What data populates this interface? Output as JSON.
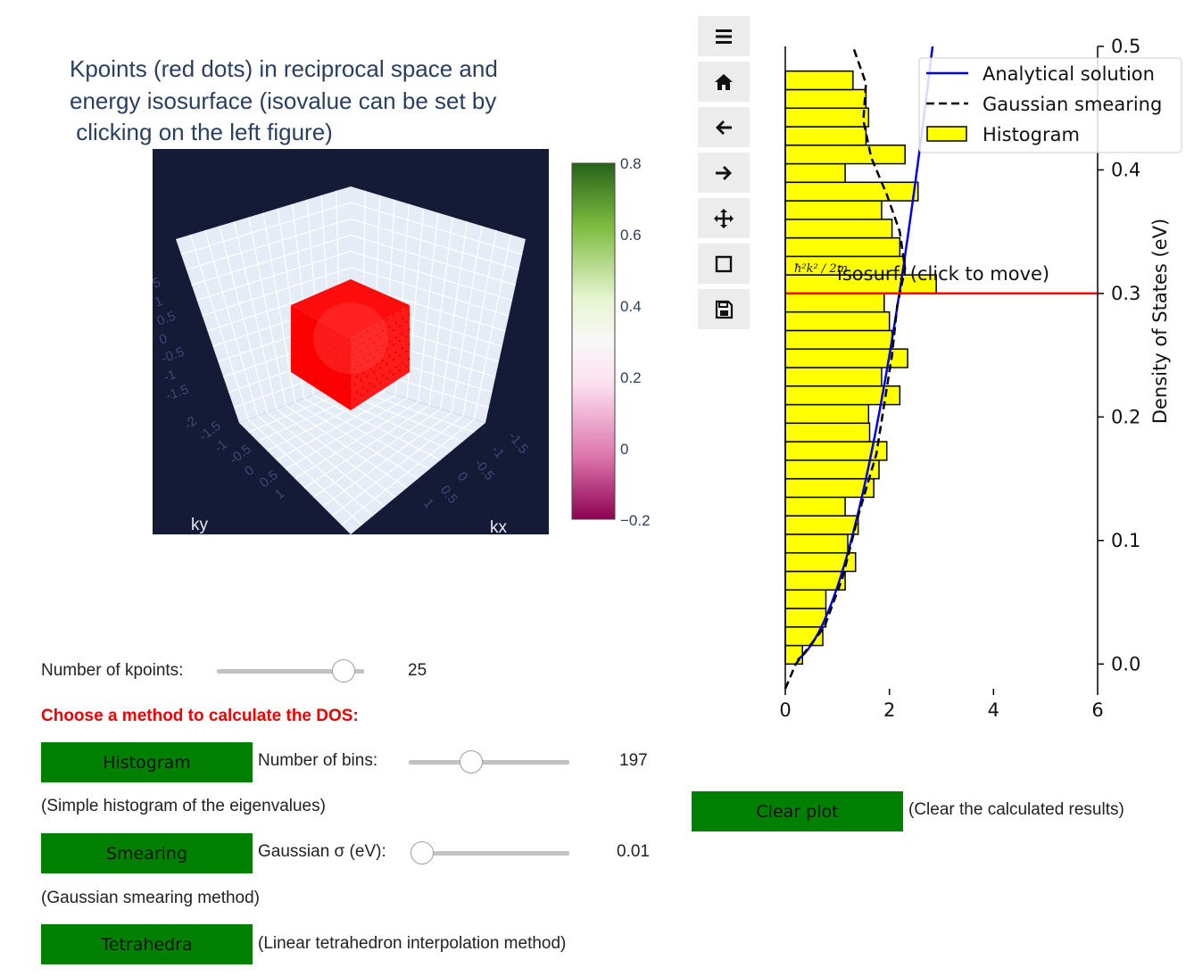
{
  "scene3d": {
    "title_lines": [
      "Kpoints (red dots) in reciprocal space and",
      "energy isosurface (isovalue can be set by",
      " clicking on the left figure)"
    ],
    "axis_left_label": "ky",
    "axis_right_label": "kx",
    "left_ticks": [
      "5",
      "1",
      "0.5",
      "0",
      "-0.5",
      "-1",
      "-1.5"
    ],
    "bottom_left_ticks": [
      "-2",
      "-1.5",
      "-1",
      "-0.5",
      "0",
      "0.5",
      "1"
    ],
    "bottom_right_ticks": [
      "-1.5",
      "-1",
      "-0.5",
      "0",
      "0.5",
      "1"
    ],
    "background_color": "#151a36",
    "point_color": "#ff0000"
  },
  "colorbar": {
    "ticks": [
      "0.8",
      "0.6",
      "0.4",
      "0.2",
      "0",
      "−0.2"
    ],
    "range": [
      -0.2,
      0.8
    ],
    "colors": [
      "#276419",
      "#7fbc41",
      "#e6f5d0",
      "#f7f7f7",
      "#fde0ef",
      "#de77ae",
      "#8e0152"
    ]
  },
  "toolbar": {
    "buttons": [
      {
        "name": "menu",
        "icon": "menu-icon"
      },
      {
        "name": "home",
        "icon": "home-icon"
      },
      {
        "name": "back",
        "icon": "arrow-left-icon"
      },
      {
        "name": "forward",
        "icon": "arrow-right-icon"
      },
      {
        "name": "pan",
        "icon": "move-icon"
      },
      {
        "name": "zoom",
        "icon": "zoom-rect-icon"
      },
      {
        "name": "save",
        "icon": "save-icon"
      }
    ]
  },
  "chart_data": {
    "type": "bar",
    "orientation": "horizontal",
    "ylabel": "Density of States (eV)",
    "xlim": [
      0,
      6
    ],
    "ylim": [
      -0.02,
      0.5
    ],
    "xticks": [
      "0",
      "2",
      "4",
      "6"
    ],
    "yticks": [
      "0.0",
      "0.1",
      "0.2",
      "0.3",
      "0.4",
      "0.5"
    ],
    "legend": [
      "Analytical solution",
      "Gaussian smearing",
      "Histogram"
    ],
    "legend_position": "top-right",
    "isosurface_annotation": "isosurf. (click to move)",
    "isosurface_formula": "ħ²k² / 2m",
    "isosurface_value": 0.3,
    "bin_width": 0.015,
    "histogram_bins": [
      {
        "e": 0.0075,
        "dos": 0.33
      },
      {
        "e": 0.0225,
        "dos": 0.72
      },
      {
        "e": 0.0375,
        "dos": 0.78
      },
      {
        "e": 0.0525,
        "dos": 0.78
      },
      {
        "e": 0.0675,
        "dos": 1.15
      },
      {
        "e": 0.0825,
        "dos": 1.35
      },
      {
        "e": 0.0975,
        "dos": 1.2
      },
      {
        "e": 0.1125,
        "dos": 1.4
      },
      {
        "e": 0.1275,
        "dos": 1.15
      },
      {
        "e": 0.1425,
        "dos": 1.7
      },
      {
        "e": 0.1575,
        "dos": 1.8
      },
      {
        "e": 0.1725,
        "dos": 1.95
      },
      {
        "e": 0.1875,
        "dos": 1.62
      },
      {
        "e": 0.2025,
        "dos": 1.6
      },
      {
        "e": 0.2175,
        "dos": 2.2
      },
      {
        "e": 0.2325,
        "dos": 1.85
      },
      {
        "e": 0.2475,
        "dos": 2.35
      },
      {
        "e": 0.2625,
        "dos": 2.05
      },
      {
        "e": 0.2775,
        "dos": 2.0
      },
      {
        "e": 0.2925,
        "dos": 1.9
      },
      {
        "e": 0.3075,
        "dos": 2.9
      },
      {
        "e": 0.3225,
        "dos": 2.3
      },
      {
        "e": 0.3375,
        "dos": 2.2
      },
      {
        "e": 0.3525,
        "dos": 2.05
      },
      {
        "e": 0.3675,
        "dos": 1.85
      },
      {
        "e": 0.3825,
        "dos": 2.55
      },
      {
        "e": 0.3975,
        "dos": 1.15
      },
      {
        "e": 0.4125,
        "dos": 2.3
      },
      {
        "e": 0.4275,
        "dos": 1.55
      },
      {
        "e": 0.4425,
        "dos": 1.6
      },
      {
        "e": 0.4575,
        "dos": 1.55
      },
      {
        "e": 0.4725,
        "dos": 1.3
      }
    ],
    "analytical_solution": {
      "coefficient": 4.0,
      "offset": 0.0,
      "formula": "dos = 4*sqrt(E)"
    },
    "gaussian_smearing": [
      {
        "e": -0.02,
        "dos": 0.0
      },
      {
        "e": 0.0,
        "dos": 0.2
      },
      {
        "e": 0.03,
        "dos": 0.75
      },
      {
        "e": 0.07,
        "dos": 1.1
      },
      {
        "e": 0.12,
        "dos": 1.4
      },
      {
        "e": 0.17,
        "dos": 1.75
      },
      {
        "e": 0.21,
        "dos": 1.9
      },
      {
        "e": 0.25,
        "dos": 2.05
      },
      {
        "e": 0.29,
        "dos": 2.15
      },
      {
        "e": 0.32,
        "dos": 2.3
      },
      {
        "e": 0.35,
        "dos": 2.2
      },
      {
        "e": 0.38,
        "dos": 1.95
      },
      {
        "e": 0.41,
        "dos": 1.65
      },
      {
        "e": 0.44,
        "dos": 1.5
      },
      {
        "e": 0.47,
        "dos": 1.55
      },
      {
        "e": 0.5,
        "dos": 1.3
      }
    ],
    "colors": {
      "analytical": "#0000ee",
      "smearing": "#000000",
      "histogram": "#ffff00",
      "isoline": "#ff0000"
    }
  },
  "controls": {
    "kpoints_label": "Number of kpoints:",
    "kpoints_value": "25",
    "kpoints_fraction": 0.93,
    "method_heading": "Choose a method to calculate the DOS:",
    "histogram_button": "Histogram",
    "bins_label": "Number of bins:",
    "bins_value": "197",
    "bins_fraction": 0.37,
    "histogram_desc": "(Simple histogram of the eigenvalues)",
    "smearing_button": "Smearing",
    "sigma_label": "Gaussian σ (eV):",
    "sigma_value": "0.01",
    "sigma_fraction": 0.0,
    "smearing_desc": "(Gaussian smearing method)",
    "tetrahedra_button": "Tetrahedra",
    "tetrahedra_desc": "(Linear tetrahedron interpolation method)",
    "clear_button": "Clear plot",
    "clear_desc": "(Clear the calculated results)"
  }
}
